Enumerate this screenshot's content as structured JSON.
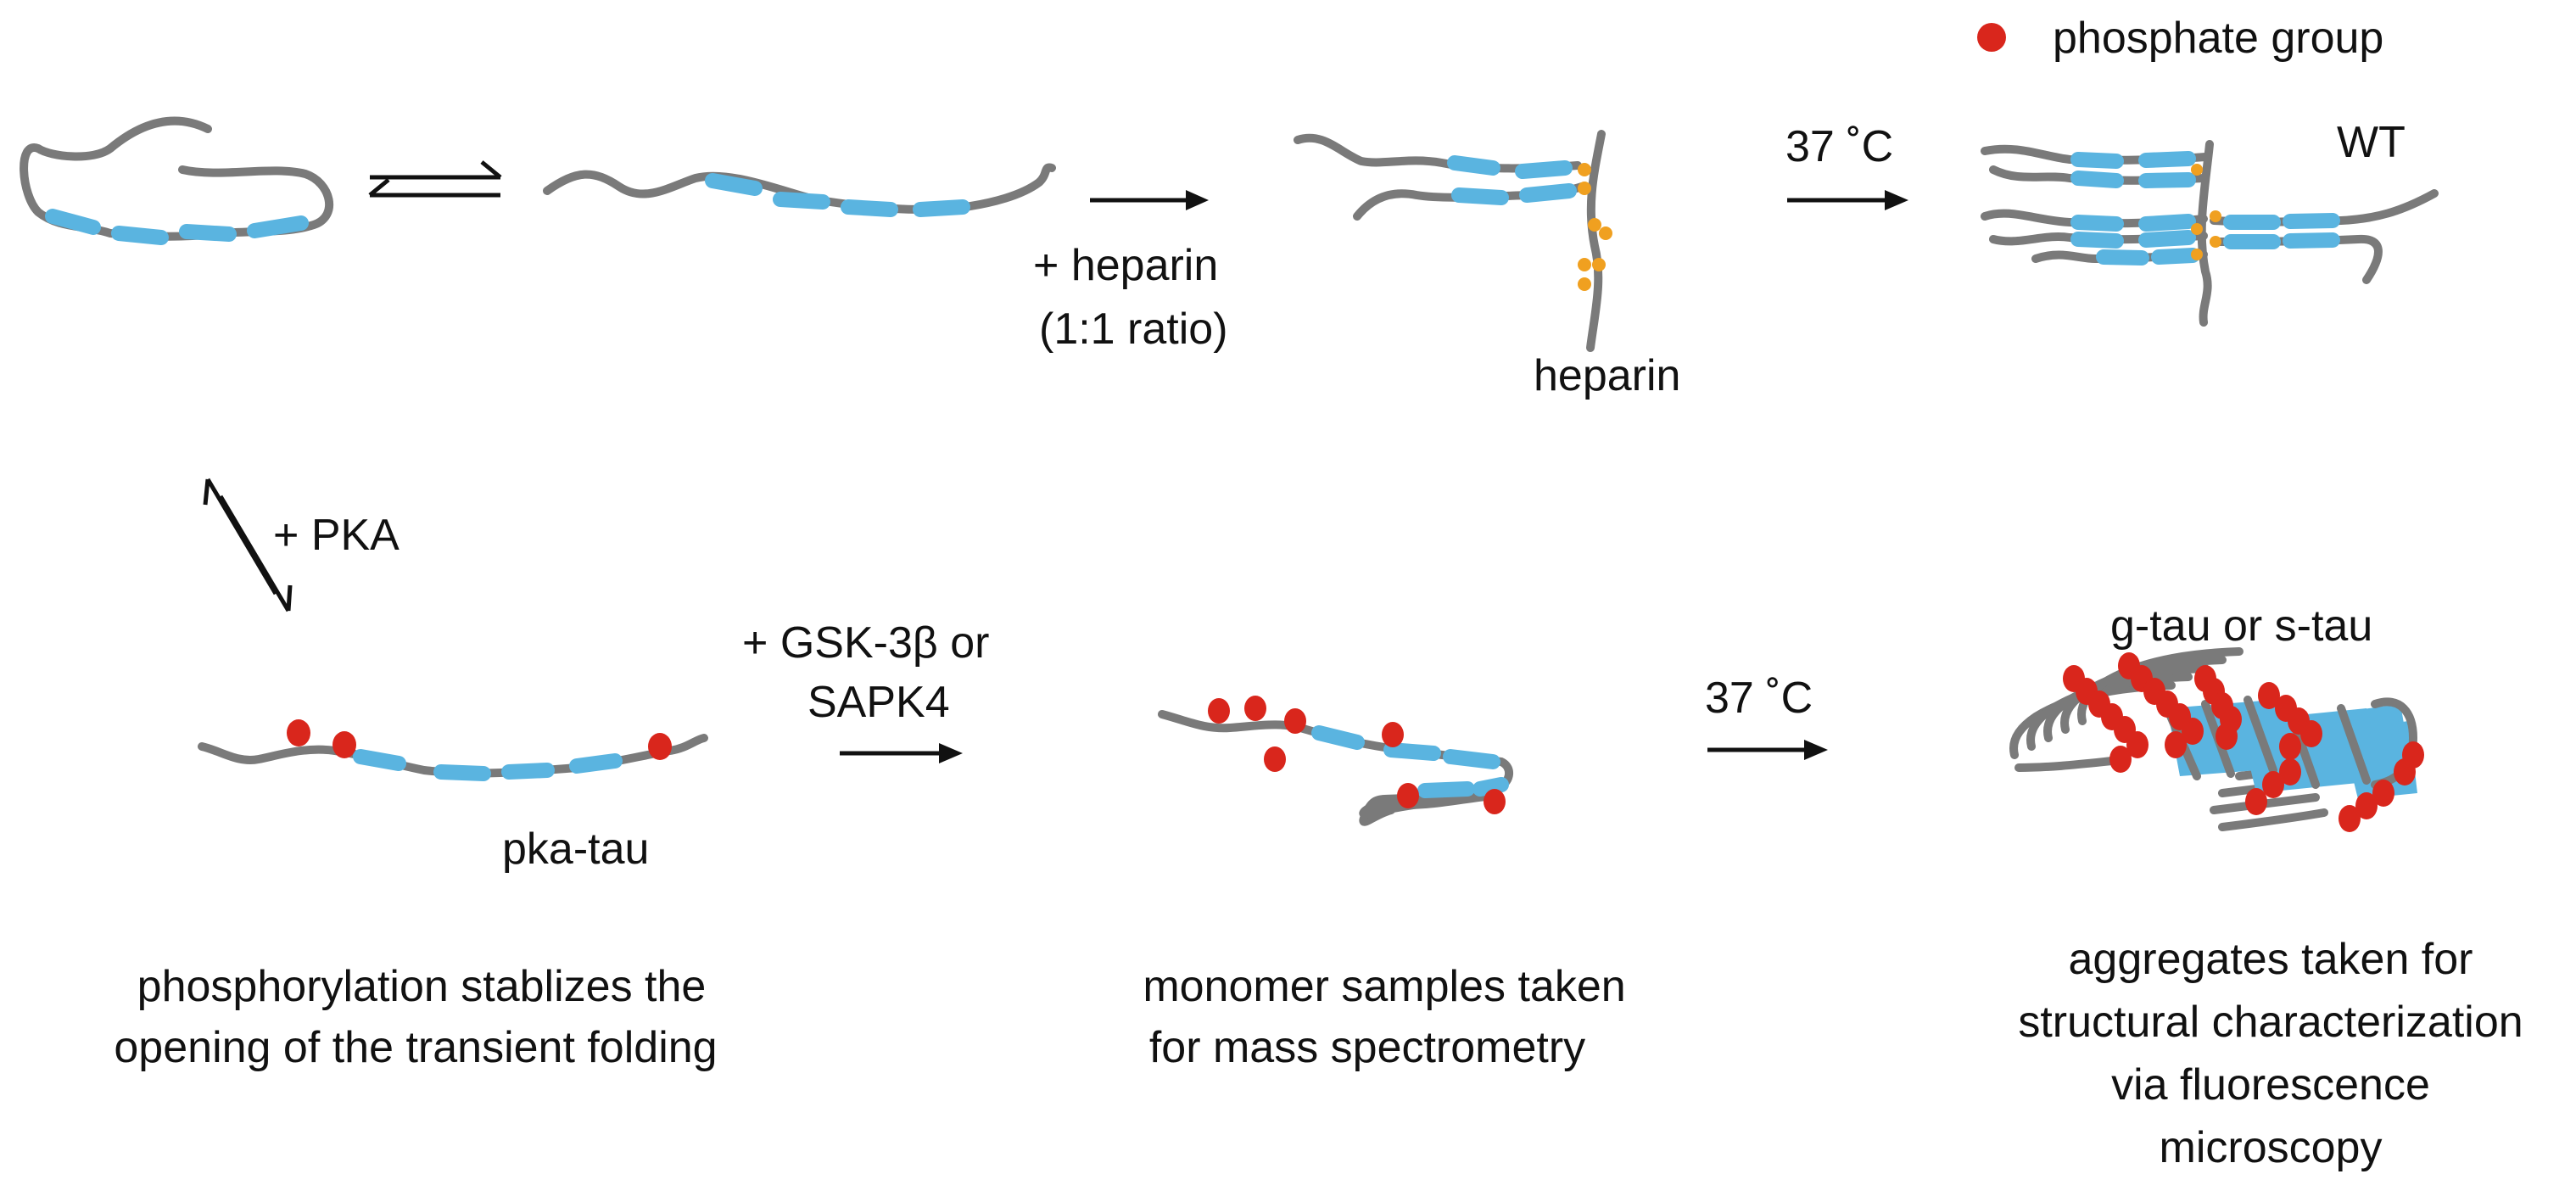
{
  "legend": {
    "label": "phosphate group",
    "color": "#d9261c"
  },
  "colors": {
    "chain": "#7a7a7a",
    "repeat_domain": "#5ab4e0",
    "phosphate": "#d9261c",
    "heparin_contact": "#f0a020"
  },
  "top_row": {
    "step1_label_line1": "+ heparin",
    "step1_label_line2": "(1:1 ratio)",
    "heparin_label": "heparin",
    "step2_label": "37 ˚C",
    "product_label": "WT"
  },
  "vertical_step": {
    "label": "+ PKA"
  },
  "bottom_row": {
    "monomer_label": "pka-tau",
    "step1_label_line1": "+ GSK-3β or",
    "step1_label_line2": "SAPK4",
    "step2_label": "37 ˚C",
    "product_label": "g-tau or s-tau"
  },
  "captions": {
    "left": [
      "phosphorylation stablizes the",
      "opening of the transient folding"
    ],
    "middle": [
      "monomer samples taken",
      "for mass spectrometry"
    ],
    "right": [
      "aggregates taken for",
      "structural characterization",
      "via fluorescence",
      "microscopy"
    ]
  }
}
